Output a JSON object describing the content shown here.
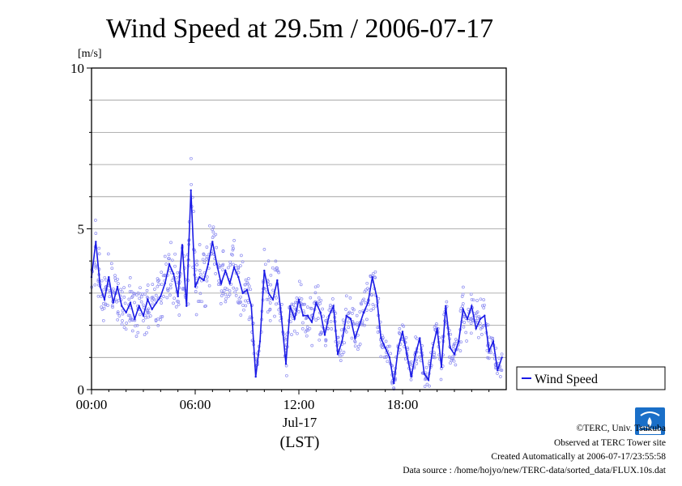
{
  "colors": {
    "series": "#1a1ae6",
    "points": "#8a8af0",
    "grid": "#999999",
    "logo": "#1a6fc8"
  },
  "icons": {
    "logo": "terc-logo-icon"
  },
  "chart_data": {
    "type": "line",
    "title": "Wind Speed at 29.5m / 2006-07-17",
    "yunit": "[m/s]",
    "ylim": [
      0,
      10
    ],
    "yticks": [
      "0",
      "5",
      "10"
    ],
    "xlim_hours": [
      0,
      24
    ],
    "xticks": [
      "00:00",
      "06:00",
      "12:00",
      "18:00"
    ],
    "xdate": "Jul-17",
    "xlabel": "(LST)",
    "grid": "horizontal",
    "legend_position": "right",
    "series": [
      {
        "name": "Wind Speed",
        "x_hours": [
          0.0,
          0.25,
          0.5,
          0.75,
          1.0,
          1.25,
          1.5,
          1.75,
          2.0,
          2.25,
          2.5,
          2.75,
          3.0,
          3.25,
          3.5,
          3.75,
          4.0,
          4.25,
          4.5,
          4.75,
          5.0,
          5.25,
          5.5,
          5.75,
          6.0,
          6.25,
          6.5,
          6.75,
          7.0,
          7.25,
          7.5,
          7.75,
          8.0,
          8.25,
          8.5,
          8.75,
          9.0,
          9.25,
          9.5,
          9.75,
          10.0,
          10.25,
          10.5,
          10.75,
          11.0,
          11.25,
          11.5,
          11.75,
          12.0,
          12.25,
          12.5,
          12.75,
          13.0,
          13.25,
          13.5,
          13.75,
          14.0,
          14.25,
          14.5,
          14.75,
          15.0,
          15.25,
          15.5,
          15.75,
          16.0,
          16.25,
          16.5,
          16.75,
          17.0,
          17.25,
          17.5,
          17.75,
          18.0,
          18.25,
          18.5,
          18.75,
          19.0,
          19.25,
          19.5,
          19.75,
          20.0,
          20.25,
          20.5,
          20.75,
          21.0,
          21.25,
          21.5,
          21.75,
          22.0,
          22.25,
          22.5,
          22.75,
          23.0,
          23.25,
          23.5,
          23.75
        ],
        "values": [
          3.5,
          4.6,
          3.2,
          2.8,
          3.5,
          2.7,
          3.2,
          2.6,
          2.4,
          2.7,
          2.2,
          2.6,
          2.3,
          2.8,
          2.5,
          2.7,
          2.9,
          3.3,
          3.9,
          3.6,
          2.9,
          4.5,
          2.6,
          6.2,
          3.2,
          3.5,
          3.4,
          3.9,
          4.6,
          3.9,
          3.3,
          3.7,
          3.3,
          3.8,
          3.5,
          3.0,
          3.1,
          2.6,
          0.4,
          1.5,
          3.7,
          3.0,
          2.8,
          3.4,
          2.2,
          0.8,
          2.6,
          2.2,
          2.8,
          2.3,
          2.3,
          2.1,
          2.7,
          2.4,
          1.7,
          2.3,
          2.6,
          1.1,
          1.5,
          2.3,
          2.2,
          1.6,
          2.0,
          2.4,
          2.7,
          3.5,
          2.9,
          1.6,
          1.3,
          1.0,
          0.2,
          1.3,
          1.8,
          1.1,
          0.4,
          1.1,
          1.6,
          0.5,
          0.3,
          1.3,
          1.9,
          0.7,
          2.6,
          1.3,
          1.1,
          1.5,
          2.5,
          2.2,
          2.6,
          1.9,
          2.2,
          2.3,
          1.2,
          1.5,
          0.6,
          1.0
        ]
      }
    ]
  },
  "footer": {
    "copyright": "©TERC, Univ. Tsukuba",
    "observed": "Observed at TERC Tower site",
    "created": "Created Automatically at 2006-07-17/23:55:58",
    "source": "Data source : /home/hojyo/new/TERC-data/sorted_data/FLUX.10s.dat"
  }
}
